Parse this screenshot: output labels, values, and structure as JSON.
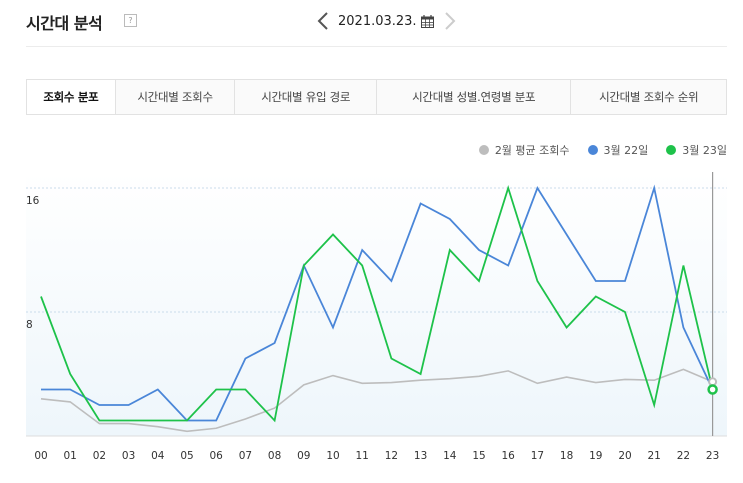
{
  "header": {
    "title": "시간대 분석",
    "help_label": "?",
    "date": "2021.03.23."
  },
  "tabs": [
    {
      "label": "조회수 분포",
      "active": true
    },
    {
      "label": "시간대별 조회수",
      "active": false
    },
    {
      "label": "시간대별 유입 경로",
      "active": false
    },
    {
      "label": "시간대별 성별.연령별 분포",
      "active": false
    },
    {
      "label": "시간대별 조회수 순위",
      "active": false
    }
  ],
  "colors": {
    "avg": "#bdbdbd",
    "mar22": "#4a86d8",
    "mar23": "#1ec24a"
  },
  "chart_data": {
    "type": "line",
    "x": [
      "00",
      "01",
      "02",
      "03",
      "04",
      "05",
      "06",
      "07",
      "08",
      "09",
      "10",
      "11",
      "12",
      "13",
      "14",
      "15",
      "16",
      "17",
      "18",
      "19",
      "20",
      "21",
      "22",
      "23"
    ],
    "y_ticks": [
      8,
      16
    ],
    "ylim": [
      0,
      16
    ],
    "series": [
      {
        "name": "2월 평균 조회수",
        "color": "#bdbdbd",
        "values": [
          2.4,
          2.2,
          0.8,
          0.8,
          0.6,
          0.3,
          0.5,
          1.1,
          1.8,
          3.3,
          3.9,
          3.4,
          3.45,
          3.6,
          3.7,
          3.85,
          4.2,
          3.4,
          3.8,
          3.45,
          3.65,
          3.6,
          4.3,
          3.5
        ]
      },
      {
        "name": "3월 22일",
        "color": "#4a86d8",
        "values": [
          3,
          3,
          2,
          2,
          3,
          1,
          1,
          5,
          6,
          11,
          7,
          12,
          10,
          15,
          14,
          12,
          11,
          16,
          13,
          10,
          10,
          16,
          7,
          3
        ]
      },
      {
        "name": "3월 23일",
        "color": "#1ec24a",
        "values": [
          9,
          4,
          1,
          1,
          1,
          1,
          3,
          3,
          1,
          11,
          13,
          11,
          5,
          4,
          12,
          10,
          16,
          10,
          7,
          9,
          8,
          2,
          11,
          3
        ]
      }
    ]
  }
}
